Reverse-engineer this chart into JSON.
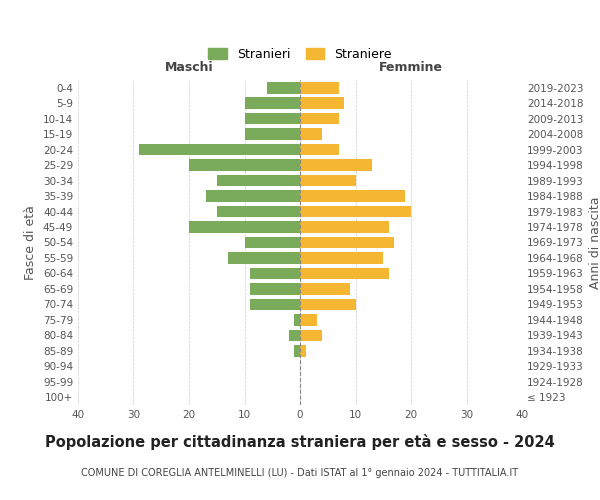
{
  "age_groups": [
    "100+",
    "95-99",
    "90-94",
    "85-89",
    "80-84",
    "75-79",
    "70-74",
    "65-69",
    "60-64",
    "55-59",
    "50-54",
    "45-49",
    "40-44",
    "35-39",
    "30-34",
    "25-29",
    "20-24",
    "15-19",
    "10-14",
    "5-9",
    "0-4"
  ],
  "birth_years": [
    "≤ 1923",
    "1924-1928",
    "1929-1933",
    "1934-1938",
    "1939-1943",
    "1944-1948",
    "1949-1953",
    "1954-1958",
    "1959-1963",
    "1964-1968",
    "1969-1973",
    "1974-1978",
    "1979-1983",
    "1984-1988",
    "1989-1993",
    "1994-1998",
    "1999-2003",
    "2004-2008",
    "2009-2013",
    "2014-2018",
    "2019-2023"
  ],
  "maschi": [
    0,
    0,
    0,
    1,
    2,
    1,
    9,
    9,
    9,
    13,
    10,
    20,
    15,
    17,
    15,
    20,
    29,
    10,
    10,
    10,
    6
  ],
  "femmine": [
    0,
    0,
    0,
    1,
    4,
    3,
    10,
    9,
    16,
    15,
    17,
    16,
    20,
    19,
    10,
    13,
    7,
    4,
    7,
    8,
    7
  ],
  "maschi_color": "#7aab5a",
  "femmine_color": "#f5b731",
  "title": "Popolazione per cittadinanza straniera per età e sesso - 2024",
  "subtitle": "COMUNE DI COREGLIA ANTELMINELLI (LU) - Dati ISTAT al 1° gennaio 2024 - TUTTITALIA.IT",
  "xlabel_left": "Maschi",
  "xlabel_right": "Femmine",
  "ylabel_left": "Fasce di età",
  "ylabel_right": "Anni di nascita",
  "legend_stranieri": "Stranieri",
  "legend_straniere": "Straniere",
  "xlim": 40,
  "background_color": "#ffffff",
  "grid_color": "#cccccc",
  "title_fontsize": 10.5,
  "subtitle_fontsize": 7.0,
  "tick_fontsize": 7.5,
  "label_fontsize": 9
}
